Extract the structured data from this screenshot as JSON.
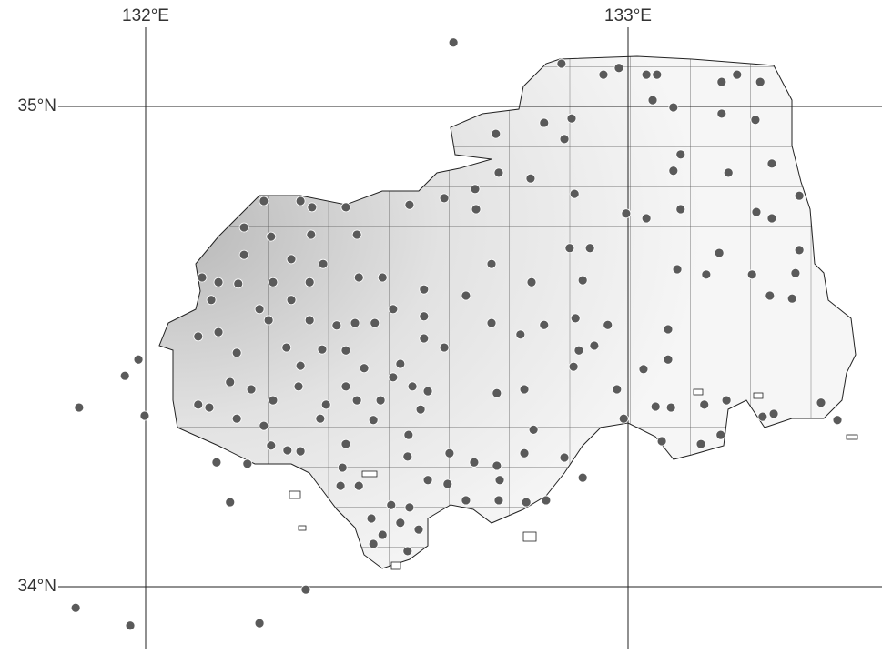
{
  "lon_ticks": [
    {
      "value": 132,
      "label": "132°E"
    },
    {
      "value": 133,
      "label": "133°E"
    }
  ],
  "lat_ticks": [
    {
      "value": 35,
      "label": "35°N"
    },
    {
      "value": 34,
      "label": "34°N"
    }
  ],
  "sites": [
    [
      132.638,
      35.133
    ],
    [
      131.862,
      34.373
    ],
    [
      131.855,
      33.956
    ],
    [
      131.968,
      33.919
    ],
    [
      132.236,
      33.924
    ],
    [
      132.332,
      33.994
    ],
    [
      132.175,
      34.176
    ],
    [
      132.862,
      35.089
    ],
    [
      132.949,
      35.066
    ],
    [
      132.981,
      35.08
    ],
    [
      133.038,
      35.066
    ],
    [
      133.06,
      35.066
    ],
    [
      133.194,
      35.051
    ],
    [
      133.226,
      35.066
    ],
    [
      133.274,
      35.051
    ],
    [
      133.051,
      35.013
    ],
    [
      133.094,
      34.998
    ],
    [
      132.826,
      34.966
    ],
    [
      132.883,
      34.975
    ],
    [
      132.726,
      34.943
    ],
    [
      132.868,
      34.932
    ],
    [
      133.194,
      34.985
    ],
    [
      133.264,
      34.972
    ],
    [
      133.109,
      34.9
    ],
    [
      133.094,
      34.866
    ],
    [
      132.732,
      34.862
    ],
    [
      132.798,
      34.85
    ],
    [
      133.208,
      34.862
    ],
    [
      133.298,
      34.881
    ],
    [
      132.683,
      34.828
    ],
    [
      132.889,
      34.818
    ],
    [
      133.355,
      34.814
    ],
    [
      132.245,
      34.803
    ],
    [
      132.321,
      34.803
    ],
    [
      132.345,
      34.79
    ],
    [
      132.415,
      34.79
    ],
    [
      132.547,
      34.795
    ],
    [
      132.619,
      34.809
    ],
    [
      132.685,
      34.786
    ],
    [
      132.996,
      34.777
    ],
    [
      133.038,
      34.767
    ],
    [
      133.109,
      34.786
    ],
    [
      133.266,
      34.78
    ],
    [
      133.298,
      34.767
    ],
    [
      132.204,
      34.748
    ],
    [
      132.26,
      34.729
    ],
    [
      132.343,
      34.733
    ],
    [
      132.438,
      34.733
    ],
    [
      132.879,
      34.705
    ],
    [
      132.921,
      34.705
    ],
    [
      133.189,
      34.695
    ],
    [
      133.355,
      34.701
    ],
    [
      132.204,
      34.691
    ],
    [
      132.302,
      34.682
    ],
    [
      132.368,
      34.672
    ],
    [
      132.717,
      34.672
    ],
    [
      132.117,
      34.644
    ],
    [
      132.151,
      34.634
    ],
    [
      132.192,
      34.631
    ],
    [
      132.264,
      34.634
    ],
    [
      132.34,
      34.634
    ],
    [
      132.442,
      34.644
    ],
    [
      132.491,
      34.644
    ],
    [
      132.906,
      34.638
    ],
    [
      132.8,
      34.634
    ],
    [
      133.102,
      34.661
    ],
    [
      133.162,
      34.65
    ],
    [
      133.257,
      34.65
    ],
    [
      133.347,
      34.653
    ],
    [
      132.136,
      34.597
    ],
    [
      132.302,
      34.597
    ],
    [
      132.577,
      34.619
    ],
    [
      132.664,
      34.606
    ],
    [
      133.294,
      34.606
    ],
    [
      133.34,
      34.6
    ],
    [
      132.236,
      34.578
    ],
    [
      132.513,
      34.578
    ],
    [
      132.151,
      34.53
    ],
    [
      132.255,
      34.555
    ],
    [
      132.34,
      34.555
    ],
    [
      132.396,
      34.544
    ],
    [
      132.434,
      34.549
    ],
    [
      132.475,
      34.549
    ],
    [
      132.577,
      34.563
    ],
    [
      132.717,
      34.549
    ],
    [
      132.826,
      34.545
    ],
    [
      132.891,
      34.559
    ],
    [
      132.958,
      34.545
    ],
    [
      133.083,
      34.536
    ],
    [
      132.109,
      34.521
    ],
    [
      132.189,
      34.487
    ],
    [
      132.292,
      34.498
    ],
    [
      132.366,
      34.494
    ],
    [
      132.415,
      34.492
    ],
    [
      132.577,
      34.517
    ],
    [
      132.619,
      34.498
    ],
    [
      132.777,
      34.525
    ],
    [
      132.898,
      34.492
    ],
    [
      132.93,
      34.502
    ],
    [
      133.083,
      34.473
    ],
    [
      131.957,
      34.439
    ],
    [
      131.985,
      34.473
    ],
    [
      132.321,
      34.46
    ],
    [
      132.453,
      34.455
    ],
    [
      132.528,
      34.464
    ],
    [
      132.887,
      34.458
    ],
    [
      133.032,
      34.453
    ],
    [
      132.175,
      34.426
    ],
    [
      132.219,
      34.411
    ],
    [
      132.317,
      34.417
    ],
    [
      132.415,
      34.417
    ],
    [
      132.513,
      34.436
    ],
    [
      132.553,
      34.417
    ],
    [
      132.585,
      34.407
    ],
    [
      132.487,
      34.388
    ],
    [
      132.728,
      34.403
    ],
    [
      132.785,
      34.411
    ],
    [
      132.977,
      34.411
    ],
    [
      132.109,
      34.379
    ],
    [
      132.132,
      34.373
    ],
    [
      132.264,
      34.388
    ],
    [
      132.374,
      34.379
    ],
    [
      132.438,
      34.388
    ],
    [
      132.57,
      34.369
    ],
    [
      133.057,
      34.375
    ],
    [
      133.089,
      34.373
    ],
    [
      133.158,
      34.379
    ],
    [
      133.204,
      34.388
    ],
    [
      131.998,
      34.356
    ],
    [
      132.189,
      34.35
    ],
    [
      132.245,
      34.335
    ],
    [
      132.362,
      34.35
    ],
    [
      132.472,
      34.347
    ],
    [
      132.991,
      34.35
    ],
    [
      133.279,
      34.354
    ],
    [
      133.302,
      34.36
    ],
    [
      133.4,
      34.383
    ],
    [
      133.434,
      34.347
    ],
    [
      132.545,
      34.316
    ],
    [
      132.804,
      34.327
    ],
    [
      132.26,
      34.294
    ],
    [
      132.294,
      34.284
    ],
    [
      132.415,
      34.297
    ],
    [
      133.07,
      34.303
    ],
    [
      133.151,
      34.297
    ],
    [
      133.192,
      34.316
    ],
    [
      132.147,
      34.259
    ],
    [
      132.211,
      34.256
    ],
    [
      132.321,
      34.282
    ],
    [
      132.543,
      34.271
    ],
    [
      132.63,
      34.278
    ],
    [
      132.785,
      34.278
    ],
    [
      132.868,
      34.269
    ],
    [
      132.681,
      34.259
    ],
    [
      132.728,
      34.252
    ],
    [
      132.408,
      34.248
    ],
    [
      132.585,
      34.222
    ],
    [
      132.626,
      34.214
    ],
    [
      132.404,
      34.21
    ],
    [
      132.734,
      34.222
    ],
    [
      132.442,
      34.21
    ],
    [
      132.906,
      34.227
    ],
    [
      132.664,
      34.18
    ],
    [
      132.732,
      34.18
    ],
    [
      132.789,
      34.176
    ],
    [
      132.83,
      34.18
    ],
    [
      132.509,
      34.17
    ],
    [
      132.547,
      34.165
    ],
    [
      132.468,
      34.142
    ],
    [
      132.528,
      34.133
    ],
    [
      132.491,
      34.108
    ],
    [
      132.566,
      34.119
    ],
    [
      132.472,
      34.089
    ],
    [
      132.543,
      34.074
    ]
  ]
}
